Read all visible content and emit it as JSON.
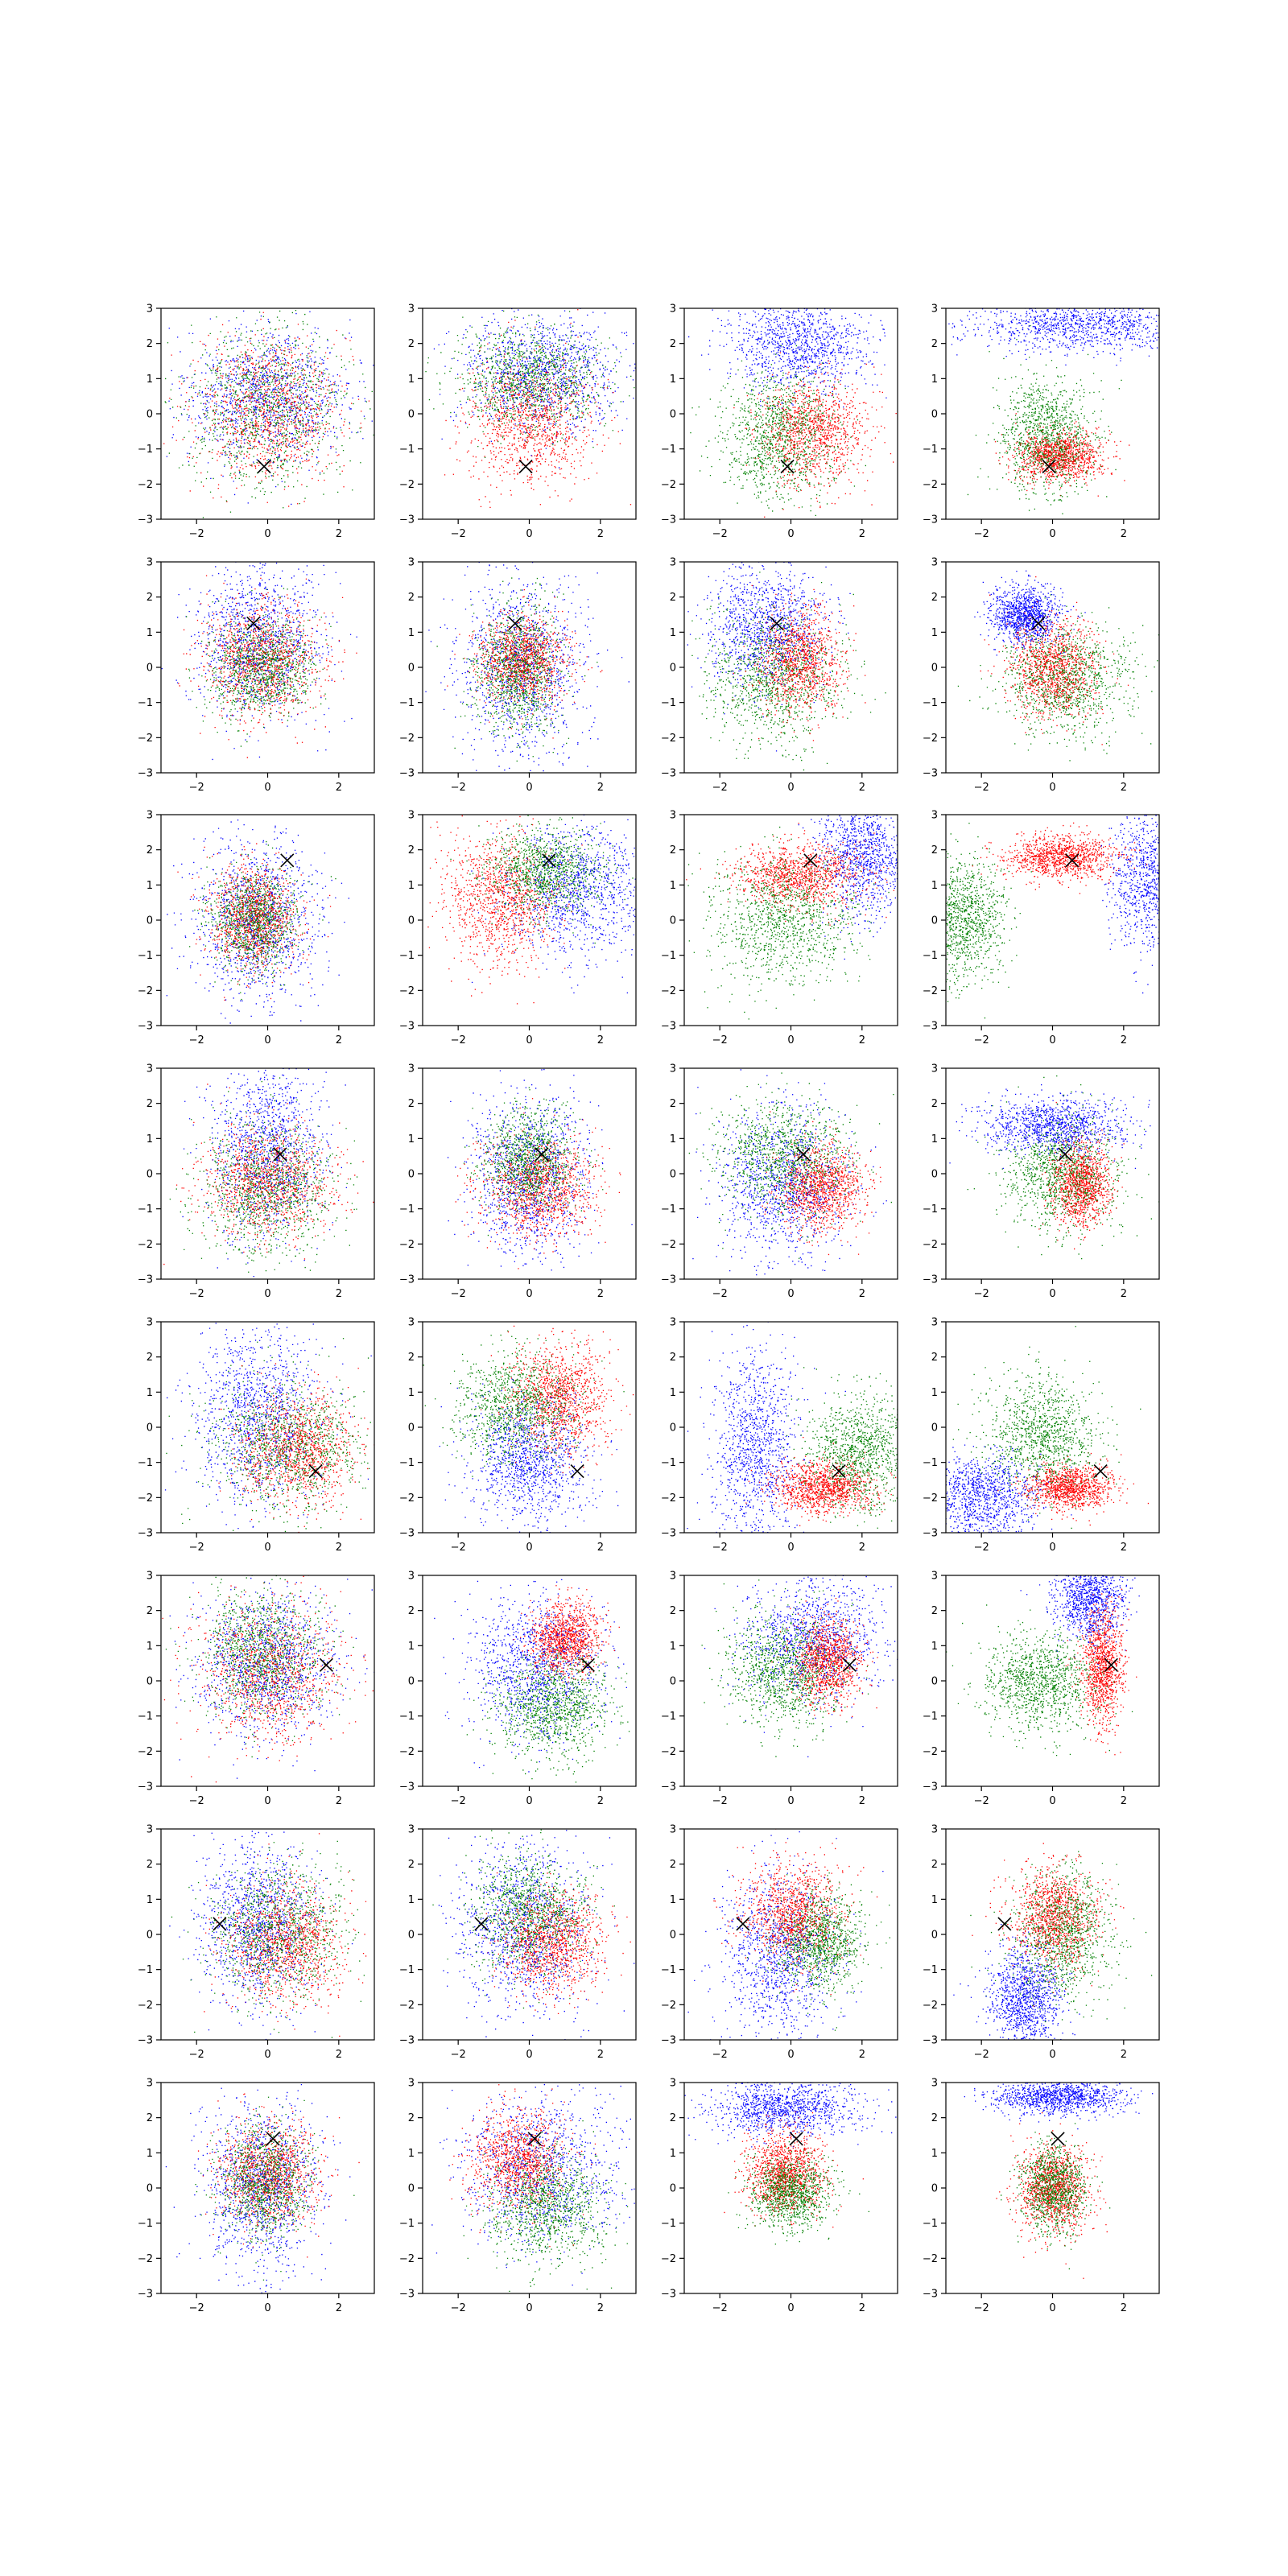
{
  "colors": {
    "c0": "#0000ff",
    "c1": "#ff0000",
    "c2": "#008000",
    "marker": "#000000"
  },
  "chart_data": {
    "type": "scatter",
    "grid": false,
    "legend": "none",
    "rows": 8,
    "cols": 4,
    "xlim": [
      -3,
      3
    ],
    "ylim": [
      -3,
      3
    ],
    "xticks": [
      "−2",
      "0",
      "2"
    ],
    "yticks": [
      "−3",
      "−2",
      "−1",
      "0",
      "1",
      "2",
      "3"
    ],
    "markers": [
      [
        -0.1,
        -1.5
      ],
      [
        -0.4,
        1.25
      ],
      [
        0.55,
        1.7
      ],
      [
        0.35,
        0.55
      ],
      [
        1.35,
        -1.25
      ],
      [
        1.65,
        0.45
      ],
      [
        -1.35,
        0.3
      ],
      [
        0.15,
        1.4
      ]
    ],
    "panels": [
      [
        [
          [
            0,
            0.5,
            1.15,
            1.0
          ],
          [
            0,
            0.1,
            1.0,
            1.0
          ],
          [
            0,
            0.3,
            1.1,
            1.1
          ]
        ],
        [
          [
            0.4,
            1.2,
            1.1,
            0.8
          ],
          [
            0,
            -0.2,
            0.9,
            0.9
          ],
          [
            0,
            1.0,
            1.0,
            0.7
          ]
        ],
        [
          [
            0.15,
            2.0,
            1.0,
            0.65
          ],
          [
            0.6,
            -0.5,
            0.75,
            0.75
          ],
          [
            -0.4,
            -0.6,
            0.8,
            0.9
          ]
        ],
        [
          [
            0.8,
            2.5,
            1.6,
            0.35
          ],
          [
            0.2,
            -1.2,
            0.6,
            0.35
          ],
          [
            -0.2,
            -0.6,
            0.65,
            0.8
          ]
        ]
      ],
      [
        [
          [
            -0.3,
            0.8,
            0.9,
            1.1
          ],
          [
            -0.2,
            0.2,
            0.8,
            0.8
          ],
          [
            -0.2,
            0.0,
            0.7,
            0.7
          ]
        ],
        [
          [
            -0.2,
            0.0,
            0.9,
            1.3
          ],
          [
            -0.2,
            0.2,
            0.6,
            0.6
          ],
          [
            -0.3,
            -0.1,
            0.6,
            0.9
          ]
        ],
        [
          [
            -0.7,
            1.2,
            0.8,
            0.9
          ],
          [
            0.2,
            0.2,
            0.6,
            0.7
          ],
          [
            -0.5,
            -0.3,
            0.9,
            0.9
          ]
        ],
        [
          [
            -0.8,
            1.5,
            0.5,
            0.4
          ],
          [
            0.0,
            0.0,
            0.6,
            0.7
          ],
          [
            0.4,
            -0.3,
            0.9,
            0.8
          ]
        ]
      ],
      [
        [
          [
            -0.3,
            0.0,
            0.9,
            1.2
          ],
          [
            -0.4,
            0.1,
            0.6,
            0.7
          ],
          [
            -0.4,
            0.0,
            0.6,
            0.7
          ]
        ],
        [
          [
            1.4,
            0.8,
            1.0,
            0.9
          ],
          [
            -0.8,
            0.6,
            0.8,
            0.9
          ],
          [
            0.4,
            1.4,
            0.8,
            0.6
          ]
        ],
        [
          [
            2.0,
            2.0,
            0.6,
            0.9
          ],
          [
            0.3,
            1.3,
            0.9,
            0.45
          ],
          [
            -0.2,
            0.0,
            1.0,
            0.9
          ]
        ],
        [
          [
            2.8,
            1.2,
            0.6,
            1.0
          ],
          [
            0.2,
            1.8,
            0.75,
            0.3
          ],
          [
            -2.5,
            0.0,
            0.6,
            0.9
          ]
        ]
      ],
      [
        [
          [
            0.0,
            0.8,
            0.8,
            1.2
          ],
          [
            0.0,
            -0.2,
            0.9,
            0.8
          ],
          [
            0.0,
            -0.4,
            0.9,
            0.9
          ]
        ],
        [
          [
            0.0,
            0.0,
            0.8,
            1.2
          ],
          [
            0.3,
            -0.4,
            0.8,
            0.7
          ],
          [
            0.0,
            0.4,
            0.6,
            0.7
          ]
        ],
        [
          [
            -0.2,
            -0.3,
            0.9,
            1.1
          ],
          [
            0.8,
            -0.4,
            0.6,
            0.6
          ],
          [
            -0.2,
            0.5,
            0.9,
            0.8
          ]
        ],
        [
          [
            0.0,
            1.4,
            1.0,
            0.4
          ],
          [
            0.8,
            -0.3,
            0.4,
            0.6
          ],
          [
            0.2,
            0.0,
            0.8,
            0.8
          ]
        ]
      ],
      [
        [
          [
            -0.3,
            0.5,
            0.9,
            1.2
          ],
          [
            0.8,
            -0.6,
            0.8,
            0.8
          ],
          [
            0.5,
            -0.5,
            1.0,
            0.9
          ]
        ],
        [
          [
            0.0,
            -0.9,
            0.8,
            0.9
          ],
          [
            0.8,
            0.9,
            0.7,
            0.8
          ],
          [
            -0.4,
            0.6,
            0.8,
            0.8
          ]
        ],
        [
          [
            -1.0,
            -0.6,
            0.6,
            1.4
          ],
          [
            0.9,
            -1.7,
            0.7,
            0.35
          ],
          [
            1.9,
            -0.7,
            0.7,
            0.8
          ]
        ],
        [
          [
            -2.0,
            -2.0,
            0.8,
            0.6
          ],
          [
            0.5,
            -1.7,
            0.6,
            0.3
          ],
          [
            -0.3,
            -0.2,
            0.8,
            0.8
          ]
        ]
      ],
      [
        [
          [
            0.0,
            0.5,
            1.0,
            1.0
          ],
          [
            0.0,
            0.2,
            1.0,
            1.0
          ],
          [
            -0.2,
            0.8,
            0.8,
            0.9
          ]
        ],
        [
          [
            0.2,
            0.4,
            0.9,
            1.0
          ],
          [
            1.0,
            1.2,
            0.5,
            0.5
          ],
          [
            0.7,
            -0.7,
            0.8,
            0.7
          ]
        ],
        [
          [
            0.6,
            1.2,
            1.0,
            0.8
          ],
          [
            1.0,
            0.6,
            0.45,
            0.6
          ],
          [
            -0.2,
            0.3,
            0.8,
            0.8
          ]
        ],
        [
          [
            1.0,
            2.4,
            0.5,
            0.6
          ],
          [
            1.4,
            0.4,
            0.3,
            0.8
          ],
          [
            -0.4,
            0.0,
            0.8,
            0.7
          ]
        ]
      ],
      [
        [
          [
            -0.3,
            0.3,
            0.8,
            1.1
          ],
          [
            0.5,
            -0.2,
            0.8,
            0.8
          ],
          [
            0.3,
            0.1,
            0.9,
            0.9
          ]
        ],
        [
          [
            -0.2,
            0.2,
            0.9,
            1.2
          ],
          [
            0.6,
            -0.2,
            0.7,
            0.7
          ],
          [
            0.0,
            0.6,
            0.8,
            0.8
          ]
        ],
        [
          [
            -0.3,
            -0.6,
            0.8,
            1.2
          ],
          [
            0.0,
            0.6,
            0.7,
            0.7
          ],
          [
            0.8,
            -0.2,
            0.6,
            0.7
          ]
        ],
        [
          [
            -0.8,
            -1.8,
            0.5,
            0.7
          ],
          [
            0.0,
            0.5,
            0.6,
            0.7
          ],
          [
            0.3,
            0.0,
            0.7,
            0.9
          ]
        ]
      ],
      [
        [
          [
            -0.2,
            0.0,
            0.8,
            1.3
          ],
          [
            0.0,
            0.4,
            0.7,
            0.7
          ],
          [
            -0.1,
            0.2,
            0.6,
            0.8
          ]
        ],
        [
          [
            0.3,
            0.5,
            1.1,
            1.1
          ],
          [
            -0.3,
            0.8,
            0.7,
            0.7
          ],
          [
            0.5,
            -0.5,
            0.8,
            0.8
          ]
        ],
        [
          [
            -0.2,
            2.3,
            1.0,
            0.4
          ],
          [
            -0.2,
            0.5,
            0.55,
            0.6
          ],
          [
            0.0,
            -0.1,
            0.55,
            0.5
          ]
        ],
        [
          [
            0.2,
            2.6,
            0.9,
            0.25
          ],
          [
            0.0,
            0.0,
            0.5,
            0.6
          ],
          [
            0.0,
            0.0,
            0.45,
            0.6
          ]
        ]
      ]
    ]
  }
}
